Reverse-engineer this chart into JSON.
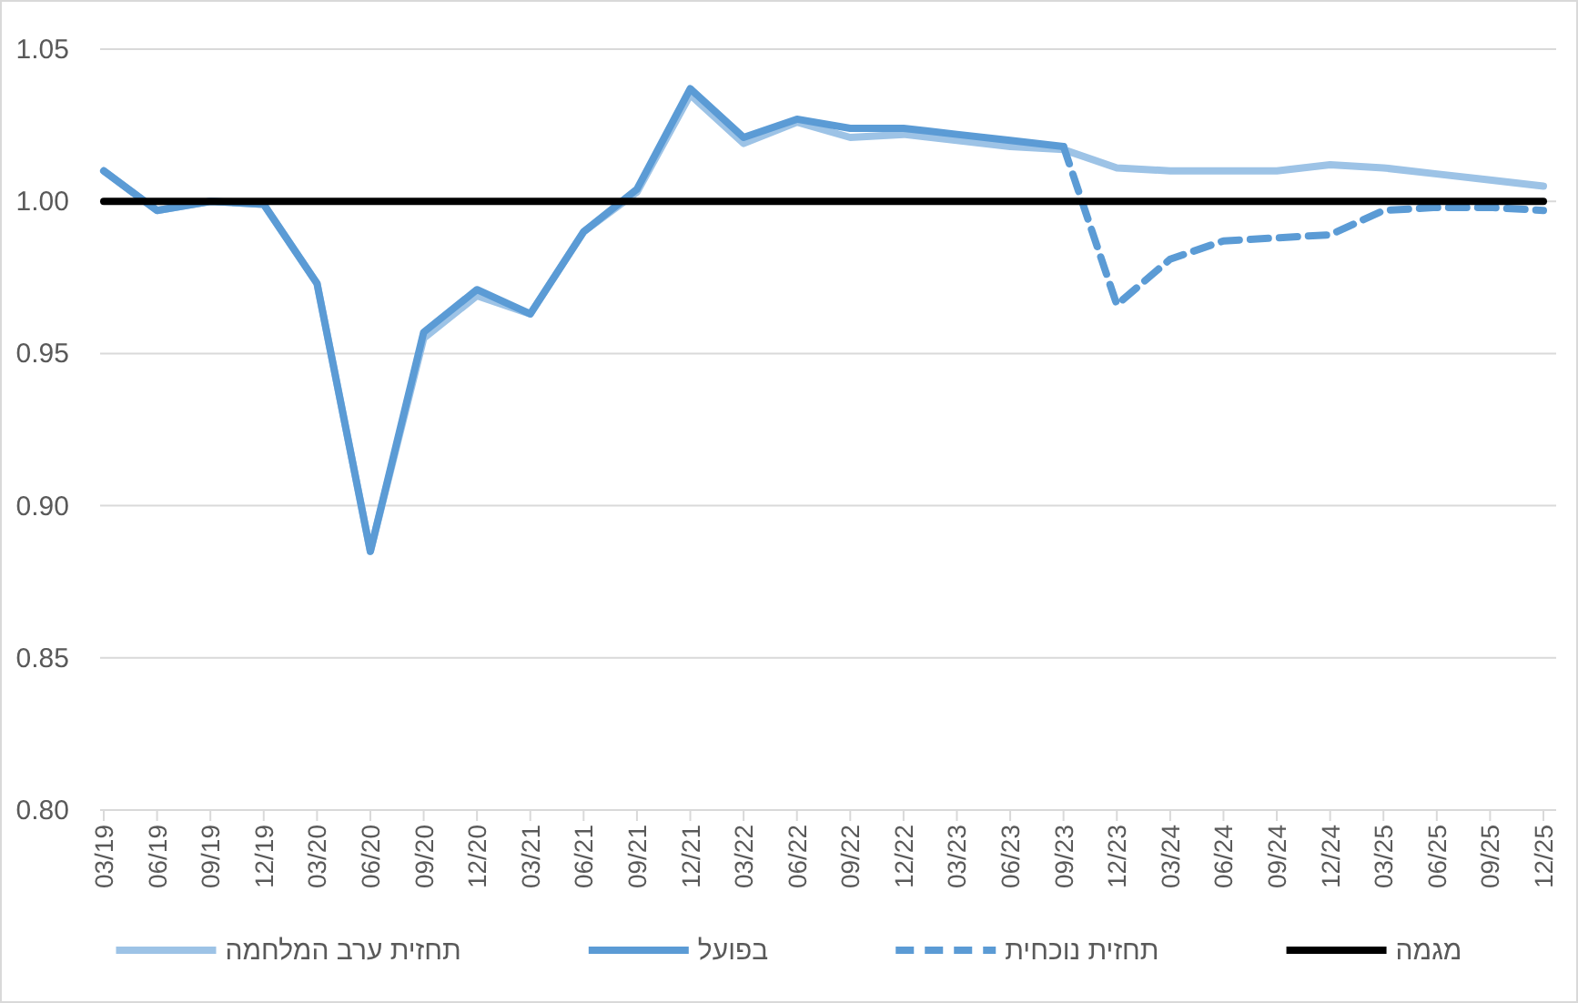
{
  "chart_data": {
    "type": "line",
    "categories": [
      "03/19",
      "06/19",
      "09/19",
      "12/19",
      "03/20",
      "06/20",
      "09/20",
      "12/20",
      "03/21",
      "06/21",
      "09/21",
      "12/21",
      "03/22",
      "06/22",
      "09/22",
      "12/22",
      "03/23",
      "06/23",
      "09/23",
      "12/23",
      "03/24",
      "06/24",
      "09/24",
      "12/24",
      "03/25",
      "06/25",
      "09/25",
      "12/25"
    ],
    "series": [
      {
        "name": "תחזית ערב המלחמה",
        "color": "#9dc3e6",
        "line_style": "solid",
        "values": [
          1.01,
          0.997,
          1.0,
          0.999,
          0.973,
          0.885,
          0.955,
          0.969,
          0.963,
          0.99,
          1.003,
          1.035,
          1.019,
          1.026,
          1.021,
          1.022,
          1.02,
          1.018,
          1.017,
          1.011,
          1.01,
          1.01,
          1.01,
          1.012,
          1.011,
          1.009,
          1.007,
          1.005
        ]
      },
      {
        "name": "בפועל",
        "color": "#5b9bd5",
        "line_style": "solid",
        "values": [
          1.01,
          0.997,
          1.0,
          0.999,
          0.973,
          0.885,
          0.957,
          0.971,
          0.963,
          0.99,
          1.004,
          1.037,
          1.021,
          1.027,
          1.024,
          1.024,
          1.022,
          1.02,
          1.018,
          null,
          null,
          null,
          null,
          null,
          null,
          null,
          null,
          null
        ]
      },
      {
        "name": "תחזית נוכחית",
        "color": "#5b9bd5",
        "line_style": "dashed",
        "values": [
          null,
          null,
          null,
          null,
          null,
          null,
          null,
          null,
          null,
          null,
          null,
          null,
          null,
          null,
          null,
          null,
          null,
          null,
          1.018,
          0.966,
          0.981,
          0.987,
          0.988,
          0.989,
          0.997,
          0.998,
          0.998,
          0.997
        ]
      },
      {
        "name": "מגמה",
        "color": "#000000",
        "line_style": "solid",
        "values": [
          1.0,
          1.0,
          1.0,
          1.0,
          1.0,
          1.0,
          1.0,
          1.0,
          1.0,
          1.0,
          1.0,
          1.0,
          1.0,
          1.0,
          1.0,
          1.0,
          1.0,
          1.0,
          1.0,
          1.0,
          1.0,
          1.0,
          1.0,
          1.0,
          1.0,
          1.0,
          1.0,
          1.0
        ]
      }
    ],
    "ylim": [
      0.8,
      1.05
    ],
    "yticks": [
      {
        "value": 0.8,
        "label": "0.80"
      },
      {
        "value": 0.85,
        "label": "0.85"
      },
      {
        "value": 0.9,
        "label": "0.90"
      },
      {
        "value": 0.95,
        "label": "0.95"
      },
      {
        "value": 1.0,
        "label": "1.00"
      },
      {
        "value": 1.05,
        "label": "1.05"
      }
    ],
    "grid": "y",
    "legend": "bottom"
  }
}
